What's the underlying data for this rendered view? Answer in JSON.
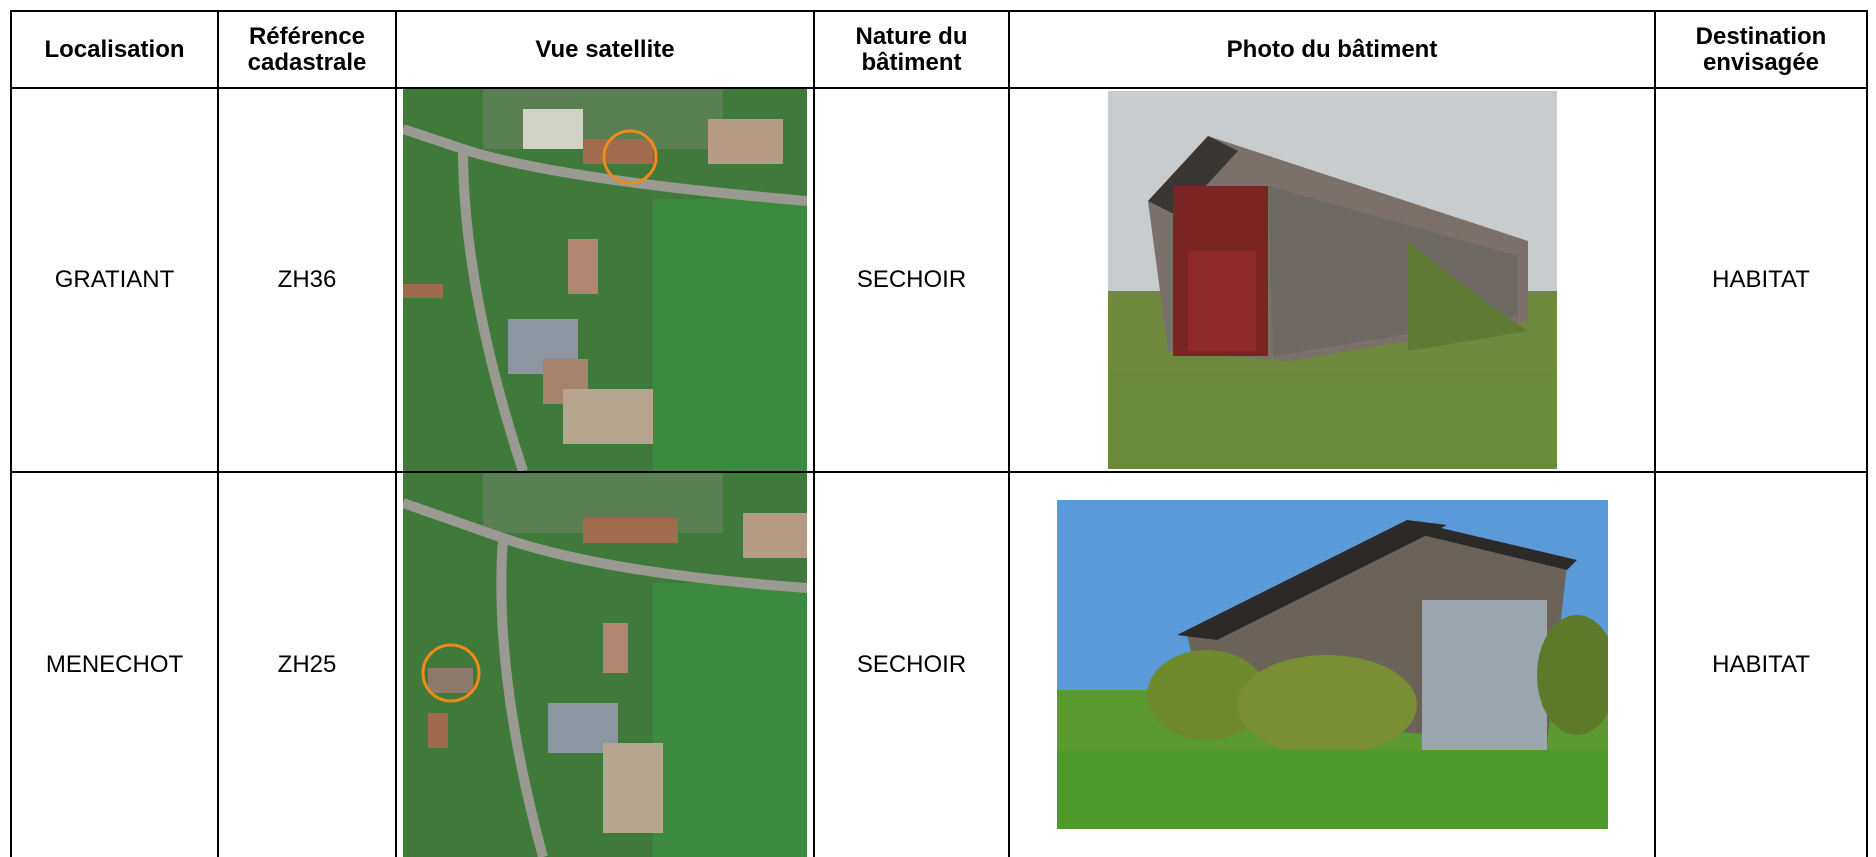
{
  "table": {
    "headers": [
      "Localisation",
      "Référence cadastrale",
      "Vue satellite",
      "Nature du bâtiment",
      "Photo du bâtiment",
      "Destination envisagée"
    ],
    "rows": [
      [
        "GRATIANT",
        "ZH36",
        "SECHOIR",
        "HABITAT"
      ],
      [
        "MENECHOT",
        "ZH25",
        "SECHOIR",
        "HABITAT"
      ]
    ]
  }
}
